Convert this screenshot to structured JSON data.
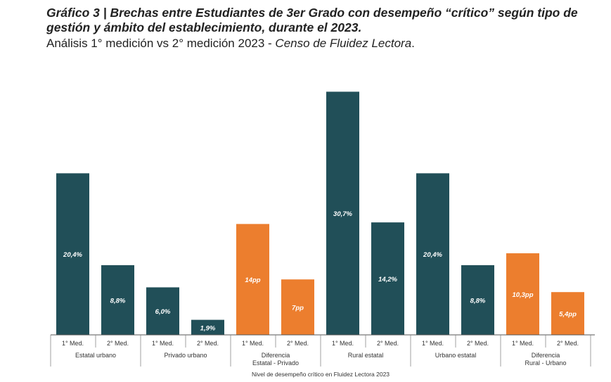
{
  "title_bold_italic": "Gráfico 3 | Brechas entre Estudiantes de 3er Grado con desempeño “crítico” según tipo de gestión y ámbito del establecimiento, durante el 2023.",
  "subtitle_plain": "Análisis 1° medición vs 2° medición 2023 - ",
  "subtitle_italic": "Censo de Fluidez Lectora",
  "subtitle_end": ".",
  "colors": {
    "measure": "#214f58",
    "difference": "#ec7e2e",
    "axis": "#555555"
  },
  "chart_data": {
    "type": "bar",
    "title": "Brechas entre Estudiantes de 3er Grado con desempeño “crítico” según tipo de gestión y ámbito del establecimiento, durante el 2023.",
    "xlabel": "Nivel de desempeño crítico en Fluidez Lectora 2023",
    "ylabel": "",
    "ylim": [
      0,
      31
    ],
    "groups": [
      {
        "name": "Estatal urbano",
        "kind": "measure",
        "bars": [
          {
            "tick": "1° Med.",
            "value": 20.4,
            "label": "20,4%"
          },
          {
            "tick": "2° Med.",
            "value": 8.8,
            "label": "8,8%"
          }
        ]
      },
      {
        "name": "Privado urbano",
        "kind": "measure",
        "bars": [
          {
            "tick": "1° Med.",
            "value": 6.0,
            "label": "6,0%"
          },
          {
            "tick": "2° Med.",
            "value": 1.9,
            "label": "1,9%"
          }
        ]
      },
      {
        "name": "Diferencia\nEstatal - Privado",
        "kind": "difference",
        "bars": [
          {
            "tick": "1° Med.",
            "value": 14,
            "label": "14pp"
          },
          {
            "tick": "2° Med.",
            "value": 7,
            "label": "7pp"
          }
        ]
      },
      {
        "name": "Rural estatal",
        "kind": "measure",
        "bars": [
          {
            "tick": "1° Med.",
            "value": 30.7,
            "label": "30,7%"
          },
          {
            "tick": "2° Med.",
            "value": 14.2,
            "label": "14,2%"
          }
        ]
      },
      {
        "name": "Urbano estatal",
        "kind": "measure",
        "bars": [
          {
            "tick": "1° Med.",
            "value": 20.4,
            "label": "20,4%"
          },
          {
            "tick": "2° Med.",
            "value": 8.8,
            "label": "8,8%"
          }
        ]
      },
      {
        "name": "Diferencia\nRural - Urbano",
        "kind": "difference",
        "bars": [
          {
            "tick": "1° Med.",
            "value": 10.3,
            "label": "10,3pp"
          },
          {
            "tick": "2° Med.",
            "value": 5.4,
            "label": "5,4pp"
          }
        ]
      }
    ]
  }
}
